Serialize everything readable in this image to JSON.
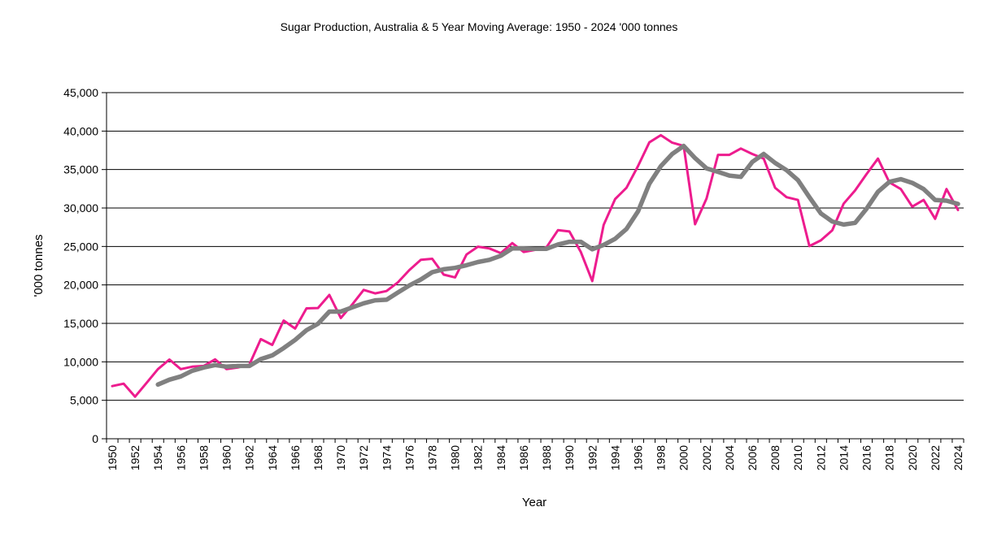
{
  "chart_data": {
    "type": "line",
    "title": "Sugar Production, Australia & 5 Year Moving Average: 1950 - 2024 '000 tonnes",
    "xlabel": "Year",
    "ylabel": "'000 tonnes",
    "ylim": [
      0,
      45000
    ],
    "yticks": [
      0,
      5000,
      10000,
      15000,
      20000,
      25000,
      30000,
      35000,
      40000,
      45000
    ],
    "ytick_labels": [
      "0",
      "5,000",
      "10,000",
      "15,000",
      "20,000",
      "25,000",
      "30,000",
      "35,000",
      "40,000",
      "45,000"
    ],
    "grid": "horizontal",
    "legend": "none",
    "x_start": 1950,
    "x_end": 2024,
    "xtick_step": 2,
    "series": [
      {
        "name": "Sugar Production",
        "color": "#ED1C8E",
        "start_year": 1950,
        "values": [
          6840,
          7160,
          5470,
          7260,
          9050,
          10300,
          9050,
          9370,
          9470,
          10320,
          9050,
          9260,
          9650,
          12950,
          12200,
          15370,
          14320,
          16950,
          17000,
          18700,
          15700,
          17450,
          19350,
          18900,
          19200,
          20350,
          21930,
          23260,
          23400,
          21340,
          20980,
          23960,
          24970,
          24740,
          24140,
          25440,
          24280,
          24560,
          24910,
          27120,
          26950,
          24280,
          20500,
          27800,
          31160,
          32630,
          35440,
          38530,
          39470,
          38490,
          38070,
          27890,
          31230,
          36910,
          36910,
          37730,
          37020,
          36420,
          32630,
          31400,
          31050,
          25050,
          25790,
          27090,
          30560,
          32280,
          34390,
          36420,
          33330,
          32460,
          30180,
          31050,
          28600,
          32460,
          29750
        ]
      },
      {
        "name": "5 Year Moving Average",
        "color": "#808080",
        "start_year": 1954,
        "values": [
          7050,
          7680,
          8100,
          8840,
          9260,
          9580,
          9370,
          9470,
          9470,
          10350,
          10840,
          11790,
          12840,
          14110,
          14950,
          16530,
          16530,
          17080,
          17610,
          18000,
          18070,
          19020,
          19930,
          20700,
          21650,
          22030,
          22210,
          22560,
          22980,
          23260,
          23790,
          24740,
          24740,
          24700,
          24700,
          25260,
          25610,
          25610,
          24630,
          25200,
          26000,
          27270,
          29550,
          33160,
          35440,
          37020,
          38070,
          36490,
          35160,
          34700,
          34210,
          34050,
          35980,
          37020,
          35860,
          34920,
          33620,
          31400,
          29300,
          28250,
          27840,
          28070,
          29890,
          32100,
          33400,
          33750,
          33260,
          32460,
          31050,
          30950,
          30530
        ]
      }
    ]
  }
}
